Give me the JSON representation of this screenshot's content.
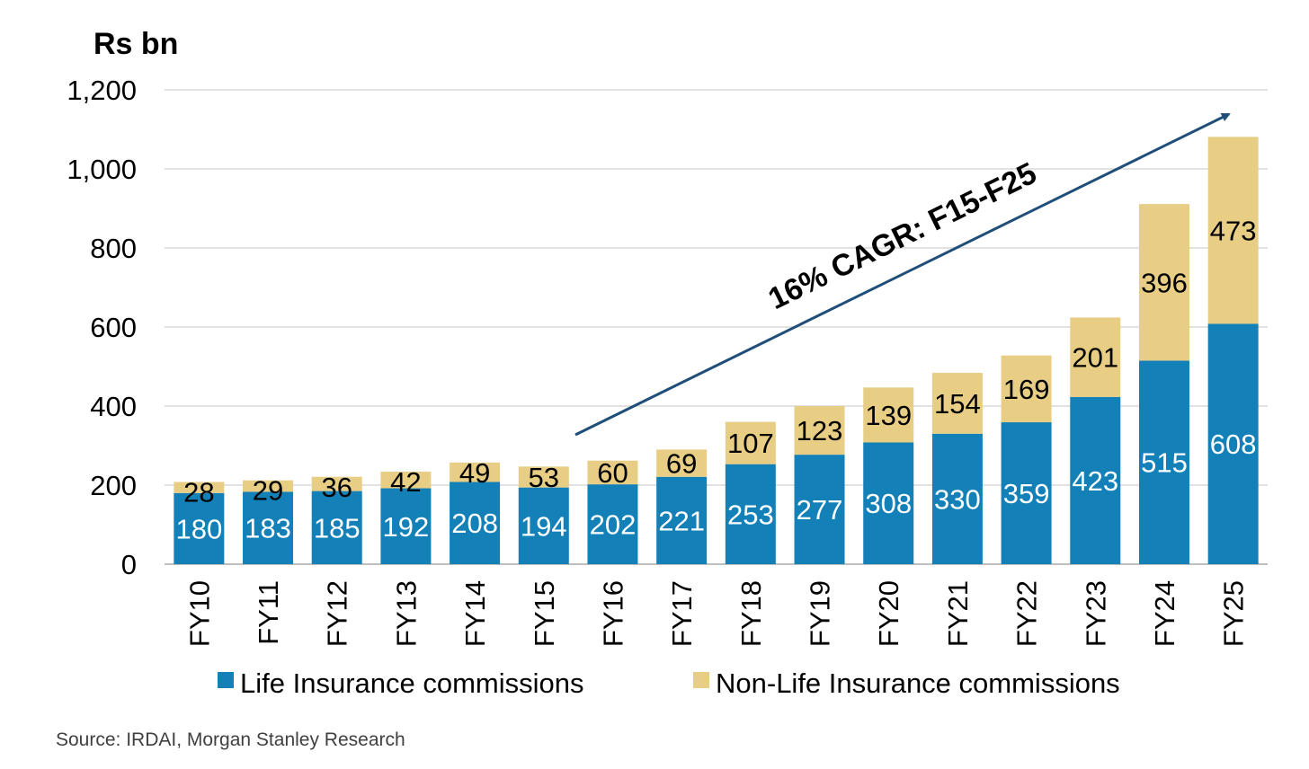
{
  "chart_data": {
    "type": "bar",
    "stacked": true,
    "ylabel": "Rs bn",
    "ylim": [
      0,
      1200
    ],
    "yticks": [
      0,
      200,
      400,
      600,
      800,
      1000,
      1200
    ],
    "ytick_labels": [
      "0",
      "200",
      "400",
      "600",
      "800",
      "1,000",
      "1,200"
    ],
    "grid": true,
    "legend_position": "bottom",
    "categories": [
      "FY10",
      "FY11",
      "FY12",
      "FY13",
      "FY14",
      "FY15",
      "FY16",
      "FY17",
      "FY18",
      "FY19",
      "FY20",
      "FY21",
      "FY22",
      "FY23",
      "FY24",
      "FY25"
    ],
    "series": [
      {
        "name": "Life Insurance commissions",
        "color": "#1380B8",
        "values": [
          180,
          183,
          185,
          192,
          208,
          194,
          202,
          221,
          253,
          277,
          308,
          330,
          359,
          423,
          515,
          608
        ]
      },
      {
        "name": "Non-Life Insurance commissions",
        "color": "#E8CD85",
        "values": [
          28,
          29,
          36,
          42,
          49,
          53,
          60,
          69,
          107,
          123,
          139,
          154,
          169,
          201,
          396,
          473
        ]
      }
    ],
    "annotation": {
      "text": "16% CAGR: F15-F25",
      "arrow_color": "#1F4E79"
    }
  },
  "source": "Source: IRDAI, Morgan Stanley Research"
}
